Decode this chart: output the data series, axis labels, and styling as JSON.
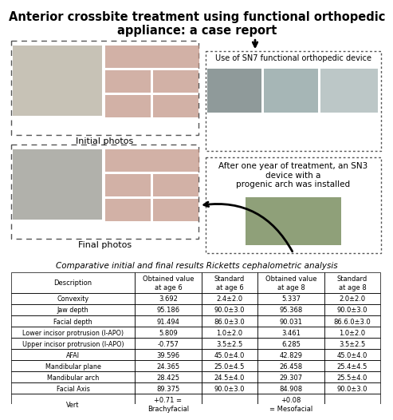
{
  "title": "Anterior crossbite treatment using functional orthopedic\nappliance: a case report",
  "title_fontsize": 10.5,
  "table_title": "Comparative initial and final results Ricketts cephalometric analysis",
  "table_headers": [
    "Description",
    "Obtained value\nat age 6",
    "Standard\nat age 6",
    "Obtained value\nat age 8",
    "Standard\nat age 8"
  ],
  "table_rows": [
    [
      "Convexity",
      "3.692",
      "2.4±2.0",
      "5.337",
      "2.0±2.0"
    ],
    [
      "Jaw depth",
      "95.186",
      "90.0±3.0",
      "95.368",
      "90.0±3.0"
    ],
    [
      "Facial depth",
      "91.494",
      "86.0±3.0",
      "90.031",
      "86.6.0±3.0"
    ],
    [
      "Lower incisor protrusion (I-APO)",
      "5.809",
      "1.0±2.0",
      "3.461",
      "1.0±2.0"
    ],
    [
      "Upper incisor protrusion (I-APO)",
      "-0.757",
      "3.5±2.5",
      "6.285",
      "3.5±2.5"
    ],
    [
      "AFAI",
      "39.596",
      "45.0±4.0",
      "42.829",
      "45.0±4.0"
    ],
    [
      "Mandibular plane",
      "24.365",
      "25.0±4.5",
      "26.458",
      "25.4±4.5"
    ],
    [
      "Mandibular arch",
      "28.425",
      "24.5±4.0",
      "29.307",
      "25.5±4.0"
    ],
    [
      "Facial Axis",
      "89.375",
      "90.0±3.0",
      "84.908",
      "90.0±3.0"
    ],
    [
      "Vert",
      "+0.71 =\nBrachyfacial",
      "",
      "+0.08\n= Mesofacial",
      ""
    ]
  ],
  "initial_photos_label": "Initial photos",
  "final_photos_label": "Final photos",
  "sn7_label": "Use of SN7 functional orthopedic device",
  "after_label": "After one year of treatment, an SN3\ndevice with a\nprogenic arch was installed",
  "bg_color": "#ffffff",
  "text_color": "#000000"
}
